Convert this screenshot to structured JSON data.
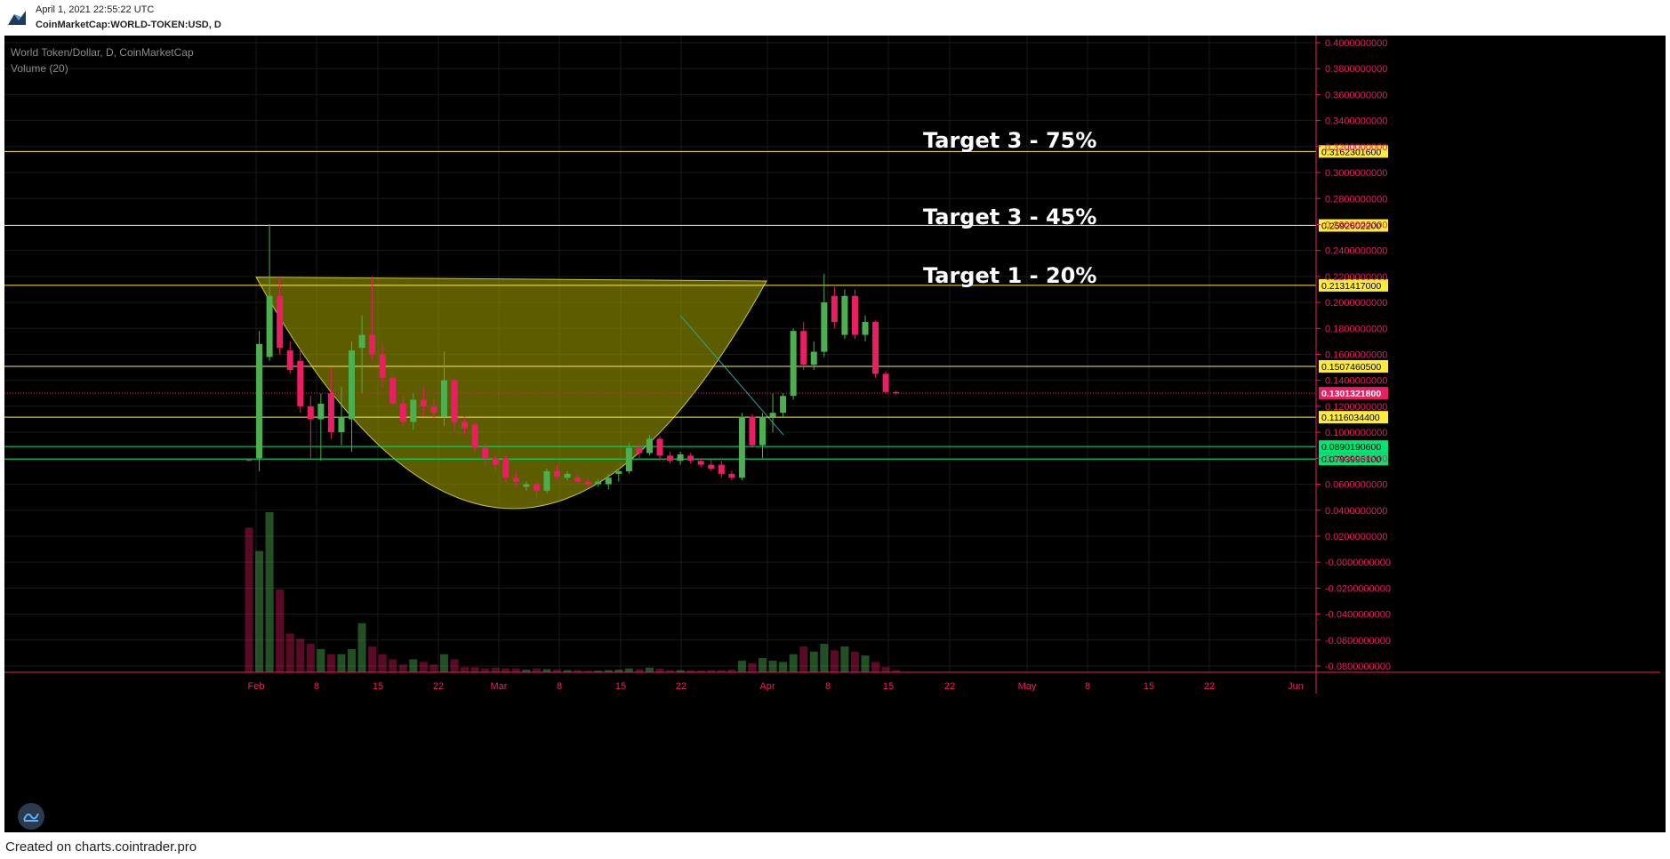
{
  "header": {
    "timestamp": "April 1, 2021 22:55:22 UTC",
    "symbol": "CoinMarketCap:WORLD-TOKEN:USD, D"
  },
  "legend": {
    "title": "World Token/Dollar, D, CoinMarketCap",
    "volume": "Volume (20)"
  },
  "footer": "Created on charts.cointrader.pro",
  "colors": {
    "up": "#4caf50",
    "down": "#e91e63",
    "level": "#ffeb3b",
    "support": "#00e676",
    "axis": "#e91e63",
    "cup_fill": "rgba(150,150,0,0.62)",
    "cup_stroke": "#c8c832",
    "trendline": "#26a69a"
  },
  "icons": {
    "logo": "cointrader-logo-icon",
    "nav": "chart-wave-icon"
  },
  "chart_data": {
    "type": "candlestick",
    "x_ticks": [
      "Feb",
      "8",
      "15",
      "22",
      "Mar",
      "8",
      "15",
      "22",
      "Apr",
      "8",
      "15",
      "22",
      "May",
      "8",
      "15",
      "22",
      "Jun"
    ],
    "y_ticks": [
      "0.4000000000",
      "0.3800000000",
      "0.3600000000",
      "0.3400000000",
      "0.3200000000",
      "0.3000000000",
      "0.2800000000",
      "0.2600000000",
      "0.2400000000",
      "0.2200000000",
      "0.2000000000",
      "0.1800000000",
      "0.1600000000",
      "0.1400000000",
      "0.1200000000",
      "0.1000000000",
      "0.0800000000",
      "0.0600000000",
      "0.0400000000",
      "0.0200000000",
      "-0.0000000000",
      "-0.0200000000",
      "-0.0400000000",
      "-0.0600000000",
      "-0.0800000000"
    ],
    "ylim": [
      -0.085,
      0.405
    ],
    "horizontal_levels": [
      {
        "value": 0.31623016,
        "label": "0.3162301600",
        "kind": "target"
      },
      {
        "value": 0.25926022,
        "label": "0.2592602200",
        "kind": "target"
      },
      {
        "value": 0.2131417,
        "label": "0.2131417000",
        "kind": "target"
      },
      {
        "value": 0.15074605,
        "label": "0.1507460500",
        "kind": "target"
      },
      {
        "value": 0.11160344,
        "label": "0.1116034400",
        "kind": "target"
      },
      {
        "value": 0.08901906,
        "label": "0.0890190600",
        "kind": "support"
      },
      {
        "value": 0.07939951,
        "label": "0.0793995100",
        "kind": "support"
      }
    ],
    "current_price": {
      "value": 0.13013218,
      "label": "0.1301321800"
    },
    "annotations": [
      {
        "text": "Target 3 - 75%",
        "y": 0.322
      },
      {
        "text": "Target 3 - 45%",
        "y": 0.263
      },
      {
        "text": "Target 1 - 20%",
        "y": 0.218
      }
    ],
    "candles": [
      {
        "o": 0.079,
        "h": 0.079,
        "l": 0.078,
        "c": 0.078,
        "v": 0.56
      },
      {
        "o": 0.08,
        "h": 0.178,
        "l": 0.07,
        "c": 0.168,
        "v": 0.47
      },
      {
        "o": 0.158,
        "h": 0.26,
        "l": 0.155,
        "c": 0.205,
        "v": 0.62
      },
      {
        "o": 0.205,
        "h": 0.22,
        "l": 0.16,
        "c": 0.165,
        "v": 0.32
      },
      {
        "o": 0.163,
        "h": 0.17,
        "l": 0.145,
        "c": 0.148,
        "v": 0.15
      },
      {
        "o": 0.155,
        "h": 0.165,
        "l": 0.115,
        "c": 0.12,
        "v": 0.13
      },
      {
        "o": 0.12,
        "h": 0.128,
        "l": 0.08,
        "c": 0.11,
        "v": 0.11
      },
      {
        "o": 0.11,
        "h": 0.13,
        "l": 0.078,
        "c": 0.122,
        "v": 0.09
      },
      {
        "o": 0.13,
        "h": 0.15,
        "l": 0.095,
        "c": 0.1,
        "v": 0.07
      },
      {
        "o": 0.1,
        "h": 0.135,
        "l": 0.09,
        "c": 0.112,
        "v": 0.07
      },
      {
        "o": 0.11,
        "h": 0.17,
        "l": 0.085,
        "c": 0.163,
        "v": 0.09
      },
      {
        "o": 0.165,
        "h": 0.19,
        "l": 0.13,
        "c": 0.175,
        "v": 0.19
      },
      {
        "o": 0.175,
        "h": 0.22,
        "l": 0.155,
        "c": 0.16,
        "v": 0.1
      },
      {
        "o": 0.16,
        "h": 0.168,
        "l": 0.135,
        "c": 0.142,
        "v": 0.07
      },
      {
        "o": 0.142,
        "h": 0.145,
        "l": 0.12,
        "c": 0.122,
        "v": 0.05
      },
      {
        "o": 0.122,
        "h": 0.128,
        "l": 0.105,
        "c": 0.108,
        "v": 0.03
      },
      {
        "o": 0.108,
        "h": 0.13,
        "l": 0.102,
        "c": 0.125,
        "v": 0.05
      },
      {
        "o": 0.125,
        "h": 0.135,
        "l": 0.112,
        "c": 0.12,
        "v": 0.04
      },
      {
        "o": 0.12,
        "h": 0.125,
        "l": 0.11,
        "c": 0.115,
        "v": 0.03
      },
      {
        "o": 0.112,
        "h": 0.162,
        "l": 0.105,
        "c": 0.14,
        "v": 0.07
      },
      {
        "o": 0.14,
        "h": 0.142,
        "l": 0.1,
        "c": 0.108,
        "v": 0.05
      },
      {
        "o": 0.108,
        "h": 0.112,
        "l": 0.098,
        "c": 0.103,
        "v": 0.02
      },
      {
        "o": 0.106,
        "h": 0.108,
        "l": 0.085,
        "c": 0.088,
        "v": 0.02
      },
      {
        "o": 0.088,
        "h": 0.092,
        "l": 0.075,
        "c": 0.08,
        "v": 0.015
      },
      {
        "o": 0.08,
        "h": 0.082,
        "l": 0.07,
        "c": 0.075,
        "v": 0.018
      },
      {
        "o": 0.08,
        "h": 0.082,
        "l": 0.062,
        "c": 0.065,
        "v": 0.015
      },
      {
        "o": 0.065,
        "h": 0.07,
        "l": 0.058,
        "c": 0.062,
        "v": 0.015
      },
      {
        "o": 0.058,
        "h": 0.062,
        "l": 0.055,
        "c": 0.06,
        "v": 0.01
      },
      {
        "o": 0.06,
        "h": 0.062,
        "l": 0.05,
        "c": 0.055,
        "v": 0.015
      },
      {
        "o": 0.055,
        "h": 0.072,
        "l": 0.053,
        "c": 0.07,
        "v": 0.012
      },
      {
        "o": 0.07,
        "h": 0.075,
        "l": 0.064,
        "c": 0.066,
        "v": 0.01
      },
      {
        "o": 0.065,
        "h": 0.07,
        "l": 0.063,
        "c": 0.068,
        "v": 0.008
      },
      {
        "o": 0.065,
        "h": 0.068,
        "l": 0.06,
        "c": 0.062,
        "v": 0.008
      },
      {
        "o": 0.062,
        "h": 0.065,
        "l": 0.058,
        "c": 0.06,
        "v": 0.006
      },
      {
        "o": 0.06,
        "h": 0.064,
        "l": 0.058,
        "c": 0.062,
        "v": 0.006
      },
      {
        "o": 0.06,
        "h": 0.068,
        "l": 0.056,
        "c": 0.065,
        "v": 0.008
      },
      {
        "o": 0.068,
        "h": 0.072,
        "l": 0.062,
        "c": 0.07,
        "v": 0.01
      },
      {
        "o": 0.07,
        "h": 0.092,
        "l": 0.068,
        "c": 0.088,
        "v": 0.015
      },
      {
        "o": 0.088,
        "h": 0.09,
        "l": 0.08,
        "c": 0.084,
        "v": 0.012
      },
      {
        "o": 0.084,
        "h": 0.098,
        "l": 0.082,
        "c": 0.095,
        "v": 0.018
      },
      {
        "o": 0.095,
        "h": 0.097,
        "l": 0.078,
        "c": 0.082,
        "v": 0.014
      },
      {
        "o": 0.082,
        "h": 0.085,
        "l": 0.076,
        "c": 0.078,
        "v": 0.008
      },
      {
        "o": 0.078,
        "h": 0.085,
        "l": 0.075,
        "c": 0.083,
        "v": 0.008
      },
      {
        "o": 0.082,
        "h": 0.084,
        "l": 0.076,
        "c": 0.078,
        "v": 0.007
      },
      {
        "o": 0.078,
        "h": 0.08,
        "l": 0.073,
        "c": 0.075,
        "v": 0.006
      },
      {
        "o": 0.075,
        "h": 0.08,
        "l": 0.07,
        "c": 0.072,
        "v": 0.008
      },
      {
        "o": 0.075,
        "h": 0.078,
        "l": 0.065,
        "c": 0.068,
        "v": 0.008
      },
      {
        "o": 0.068,
        "h": 0.07,
        "l": 0.063,
        "c": 0.065,
        "v": 0.01
      },
      {
        "o": 0.065,
        "h": 0.115,
        "l": 0.063,
        "c": 0.112,
        "v": 0.045
      },
      {
        "o": 0.112,
        "h": 0.114,
        "l": 0.088,
        "c": 0.09,
        "v": 0.035
      },
      {
        "o": 0.09,
        "h": 0.115,
        "l": 0.08,
        "c": 0.112,
        "v": 0.055
      },
      {
        "o": 0.112,
        "h": 0.13,
        "l": 0.1,
        "c": 0.115,
        "v": 0.045
      },
      {
        "o": 0.115,
        "h": 0.13,
        "l": 0.112,
        "c": 0.128,
        "v": 0.04
      },
      {
        "o": 0.128,
        "h": 0.18,
        "l": 0.125,
        "c": 0.178,
        "v": 0.07
      },
      {
        "o": 0.178,
        "h": 0.185,
        "l": 0.148,
        "c": 0.152,
        "v": 0.1
      },
      {
        "o": 0.152,
        "h": 0.17,
        "l": 0.148,
        "c": 0.162,
        "v": 0.08
      },
      {
        "o": 0.162,
        "h": 0.222,
        "l": 0.158,
        "c": 0.2,
        "v": 0.11
      },
      {
        "o": 0.205,
        "h": 0.212,
        "l": 0.18,
        "c": 0.185,
        "v": 0.085
      },
      {
        "o": 0.175,
        "h": 0.21,
        "l": 0.172,
        "c": 0.205,
        "v": 0.1
      },
      {
        "o": 0.205,
        "h": 0.21,
        "l": 0.172,
        "c": 0.175,
        "v": 0.08
      },
      {
        "o": 0.175,
        "h": 0.19,
        "l": 0.17,
        "c": 0.185,
        "v": 0.065
      },
      {
        "o": 0.185,
        "h": 0.186,
        "l": 0.142,
        "c": 0.145,
        "v": 0.04
      },
      {
        "o": 0.145,
        "h": 0.147,
        "l": 0.13,
        "c": 0.131,
        "v": 0.02
      },
      {
        "o": 0.131,
        "h": 0.132,
        "l": 0.129,
        "c": 0.1301,
        "v": 0.008
      }
    ]
  }
}
